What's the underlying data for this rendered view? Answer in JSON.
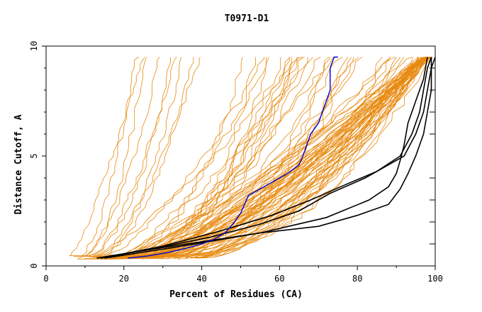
{
  "chart_data": {
    "type": "line",
    "title": "T0971-D1",
    "xlabel": "Percent of Residues (CA)",
    "ylabel": "Distance Cutoff, A",
    "xlim": [
      0,
      100
    ],
    "ylim": [
      0,
      10
    ],
    "x_ticks": [
      0,
      20,
      40,
      60,
      80,
      100
    ],
    "y_ticks": [
      0,
      5,
      10
    ],
    "grid": false,
    "legend": "none",
    "colors": {
      "others": "#e88a10",
      "reference": "#000000",
      "highlight": "#0000cc"
    },
    "highlight_series": {
      "color": "#0000cc",
      "points": [
        [
          21,
          0.35
        ],
        [
          26,
          0.45
        ],
        [
          31,
          0.6
        ],
        [
          36,
          0.8
        ],
        [
          40,
          1.0
        ],
        [
          43,
          1.2
        ],
        [
          46,
          1.5
        ],
        [
          48,
          1.9
        ],
        [
          50,
          2.4
        ],
        [
          52,
          3.2
        ],
        [
          55,
          3.5
        ],
        [
          58,
          3.8
        ],
        [
          62,
          4.2
        ],
        [
          65,
          4.6
        ],
        [
          66,
          5.0
        ],
        [
          67,
          5.5
        ],
        [
          68,
          6.0
        ],
        [
          70,
          6.5
        ],
        [
          71,
          7.0
        ],
        [
          72,
          7.5
        ],
        [
          73,
          8.0
        ],
        [
          73,
          8.5
        ],
        [
          73,
          9.0
        ],
        [
          74,
          9.5
        ],
        [
          75,
          10.0
        ]
      ]
    },
    "reference_series": [
      {
        "color": "#000000",
        "points": [
          [
            13,
            0.35
          ],
          [
            25,
            0.7
          ],
          [
            40,
            1.1
          ],
          [
            55,
            1.5
          ],
          [
            70,
            1.8
          ],
          [
            80,
            2.3
          ],
          [
            88,
            2.8
          ],
          [
            91,
            3.5
          ],
          [
            93,
            4.2
          ],
          [
            95,
            5.0
          ],
          [
            97,
            6.0
          ],
          [
            98,
            7.0
          ],
          [
            99,
            8.0
          ],
          [
            99,
            9.0
          ],
          [
            100,
            10.0
          ]
        ]
      },
      {
        "color": "#000000",
        "points": [
          [
            14,
            0.35
          ],
          [
            28,
            0.8
          ],
          [
            42,
            1.3
          ],
          [
            55,
            1.9
          ],
          [
            65,
            2.5
          ],
          [
            73,
            3.3
          ],
          [
            82,
            4.0
          ],
          [
            88,
            4.6
          ],
          [
            92,
            5.0
          ],
          [
            95,
            6.0
          ],
          [
            97,
            7.0
          ],
          [
            98,
            8.0
          ],
          [
            99,
            9.0
          ],
          [
            99,
            10.0
          ]
        ]
      },
      {
        "color": "#000000",
        "points": [
          [
            14,
            0.35
          ],
          [
            30,
            0.9
          ],
          [
            45,
            1.6
          ],
          [
            58,
            2.3
          ],
          [
            68,
            3.0
          ],
          [
            77,
            3.7
          ],
          [
            85,
            4.3
          ],
          [
            91,
            5.0
          ],
          [
            94,
            6.0
          ],
          [
            96,
            7.0
          ],
          [
            97,
            8.0
          ],
          [
            98,
            9.0
          ],
          [
            99,
            10.0
          ]
        ]
      },
      {
        "color": "#000000",
        "points": [
          [
            15,
            0.35
          ],
          [
            35,
            0.9
          ],
          [
            55,
            1.5
          ],
          [
            72,
            2.2
          ],
          [
            83,
            3.0
          ],
          [
            88,
            3.6
          ],
          [
            90,
            4.2
          ],
          [
            91,
            4.8
          ],
          [
            92,
            5.5
          ],
          [
            93,
            6.5
          ],
          [
            95,
            7.5
          ],
          [
            97,
            8.5
          ],
          [
            98,
            9.5
          ],
          [
            98,
            10.0
          ]
        ]
      }
    ],
    "other_series_count": 90
  }
}
